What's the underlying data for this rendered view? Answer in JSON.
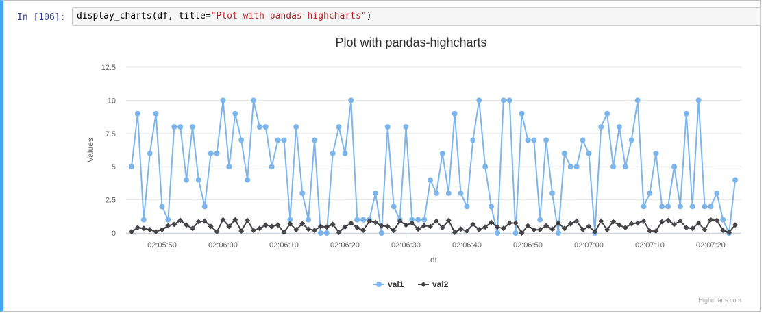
{
  "notebook": {
    "prompt": "In [106]:",
    "code_fn": "display_charts(df, title=",
    "code_arg": "\"Plot with pandas-highcharts\"",
    "code_end": ")"
  },
  "colors": {
    "cell_accent": "#42a5f5",
    "val1": "#7cb5ec",
    "val2": "#434348",
    "grid": "#e6e6e6"
  },
  "chart_data": {
    "type": "line",
    "title": "Plot with pandas-highcharts",
    "xlabel": "dt",
    "ylabel": "Values",
    "ylim": [
      0,
      12.5
    ],
    "yticks": [
      0,
      2.5,
      5,
      7.5,
      10,
      12.5
    ],
    "ytick_labels": [
      "0",
      "2.5",
      "5",
      "7.5",
      "10",
      "12.5"
    ],
    "x_start": "02:05:45",
    "x_step_seconds": 1,
    "xticks": [
      "02:05:50",
      "02:06:00",
      "02:06:10",
      "02:06:20",
      "02:06:30",
      "02:06:40",
      "02:06:50",
      "02:07:00",
      "02:07:10",
      "02:07:20"
    ],
    "xtick_seconds_from_start": [
      5,
      15,
      25,
      35,
      45,
      55,
      65,
      75,
      85,
      95
    ],
    "legend_position": "bottom-center",
    "grid": true,
    "credits": "Highcharts.com",
    "series": [
      {
        "name": "val1",
        "marker": "circle",
        "values": [
          5,
          9,
          1,
          6,
          9,
          2,
          1,
          8,
          8,
          4,
          8,
          4,
          2,
          6,
          6,
          10,
          5,
          9,
          7,
          4,
          10,
          8,
          8,
          5,
          7,
          7,
          1,
          8,
          3,
          1,
          7,
          0,
          0,
          6,
          8,
          6,
          10,
          1,
          1,
          1,
          3,
          0,
          8,
          2,
          1,
          8,
          1,
          1,
          1,
          4,
          3,
          6,
          3,
          9,
          3,
          2,
          7,
          10,
          5,
          2,
          0,
          10,
          10,
          0,
          9,
          7,
          7,
          1,
          7,
          3,
          0,
          6,
          5,
          5,
          7,
          6,
          0,
          8,
          9,
          5,
          8,
          5,
          7,
          10,
          2,
          3,
          6,
          2,
          2,
          5,
          2,
          9,
          2,
          10,
          2,
          2,
          3,
          1,
          0,
          4
        ]
      },
      {
        "name": "val2",
        "marker": "diamond",
        "values": [
          0.1,
          0.4,
          0.35,
          0.25,
          0.1,
          0.25,
          0.55,
          0.65,
          0.95,
          0.6,
          0.35,
          0.85,
          0.9,
          0.5,
          0.1,
          1.0,
          0.5,
          1.0,
          0.15,
          0.95,
          0.2,
          0.35,
          0.6,
          0.5,
          0.6,
          0.05,
          0.7,
          0.25,
          0.7,
          0.3,
          0.2,
          0.5,
          0.45,
          0.65,
          0.05,
          0.45,
          0.75,
          0.4,
          0.2,
          0.9,
          0.8,
          0.55,
          0.5,
          0.2,
          0.9,
          0.6,
          0.75,
          0.3,
          0.55,
          0.5,
          0.9,
          0.4,
          0.95,
          0.05,
          0.3,
          0.15,
          0.65,
          0.25,
          0.45,
          0.8,
          0.45,
          0.35,
          0.75,
          0.75,
          0.0,
          0.55,
          0.25,
          0.25,
          0.55,
          0.3,
          0.75,
          0.35,
          0.7,
          0.9,
          0.25,
          0.5,
          0.1,
          0.9,
          0.25,
          0.85,
          0.6,
          0.4,
          0.7,
          0.75,
          0.9,
          0.15,
          0.15,
          0.85,
          0.95,
          0.65,
          0.9,
          0.4,
          0.35,
          0.75,
          0.25,
          1.0,
          0.95,
          0.2,
          0.05,
          0.6
        ]
      }
    ]
  }
}
